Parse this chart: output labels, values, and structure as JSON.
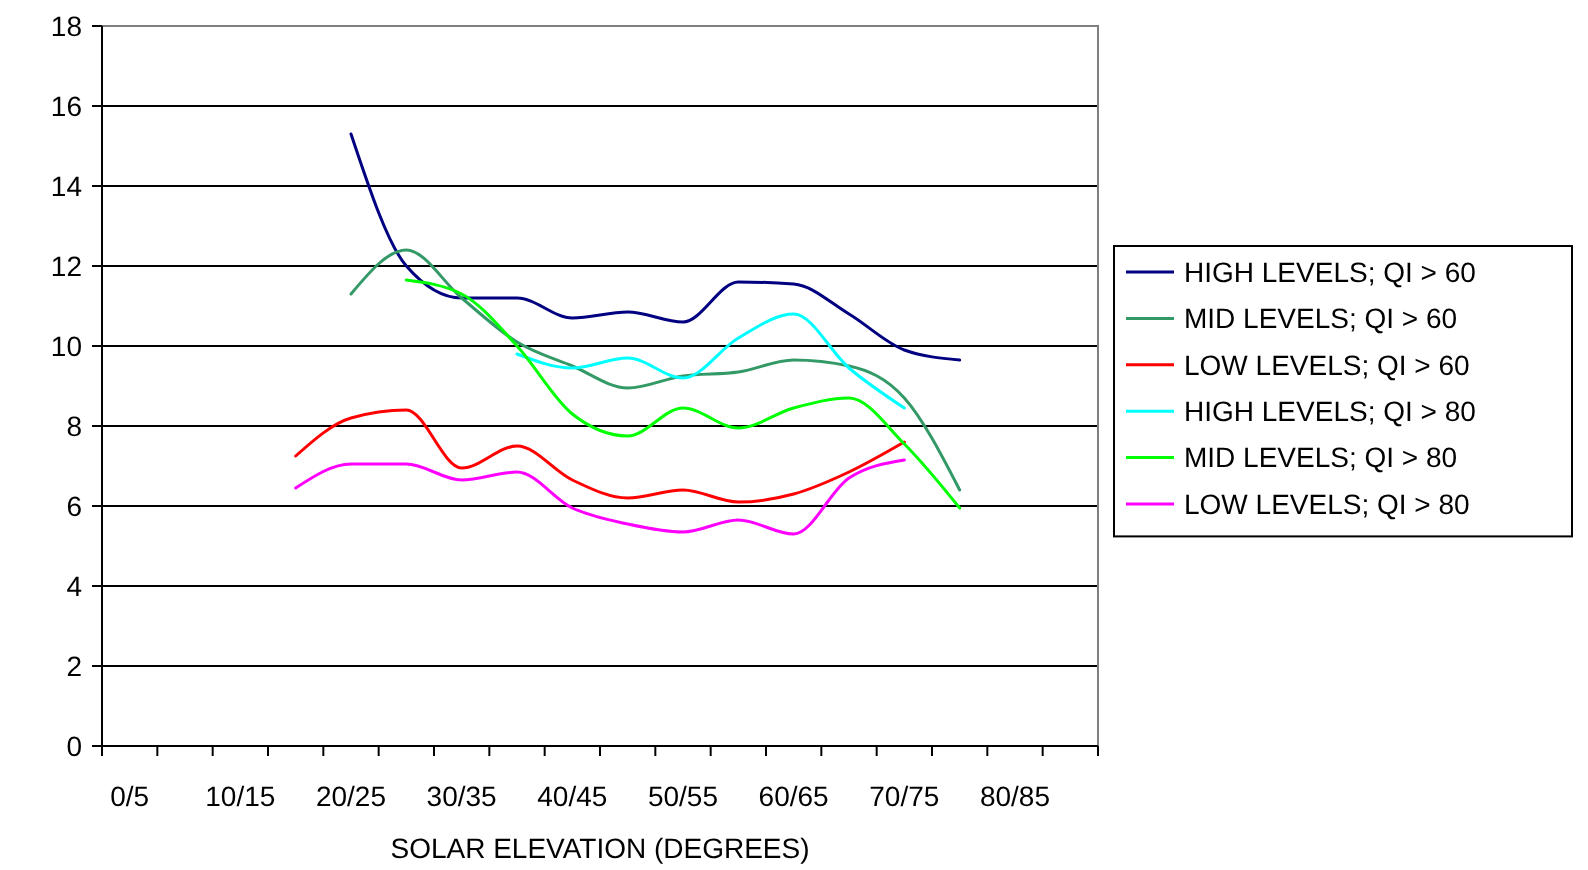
{
  "chart_data": {
    "type": "line",
    "xlabel": "SOLAR ELEVATION (DEGREES)",
    "categories": [
      "0/5",
      null,
      "10/15",
      null,
      "20/25",
      null,
      "30/35",
      null,
      "40/45",
      null,
      "50/55",
      null,
      "60/65",
      null,
      "70/75",
      null,
      "80/85",
      null
    ],
    "series": [
      {
        "name": "HIGH LEVELS; QI > 60",
        "color": "#000080",
        "values": [
          null,
          null,
          null,
          null,
          15.3,
          12.0,
          11.2,
          11.2,
          10.7,
          10.85,
          10.6,
          11.6,
          11.55,
          10.8,
          9.9,
          9.65,
          null,
          null
        ]
      },
      {
        "name": "MID LEVELS; QI > 60",
        "color": "#339966",
        "values": [
          null,
          null,
          null,
          null,
          11.3,
          12.4,
          11.2,
          10.1,
          9.5,
          8.95,
          9.25,
          9.35,
          9.65,
          9.5,
          8.7,
          6.4,
          null,
          null
        ]
      },
      {
        "name": "LOW LEVELS; QI > 60",
        "color": "#ff0000",
        "values": [
          null,
          null,
          null,
          7.25,
          8.2,
          8.4,
          6.95,
          7.5,
          6.65,
          6.2,
          6.4,
          6.1,
          6.3,
          6.85,
          7.6,
          null,
          null,
          null
        ]
      },
      {
        "name": "HIGH LEVELS; QI > 80",
        "color": "#00ffff",
        "values": [
          null,
          null,
          null,
          null,
          null,
          null,
          null,
          9.8,
          9.45,
          9.7,
          9.2,
          10.2,
          10.8,
          9.45,
          8.45,
          null,
          null,
          null
        ]
      },
      {
        "name": "MID LEVELS; QI > 80",
        "color": "#00ff00",
        "values": [
          null,
          null,
          null,
          null,
          null,
          11.65,
          11.3,
          10.0,
          8.3,
          7.75,
          8.45,
          7.95,
          8.45,
          8.7,
          7.55,
          5.95,
          null,
          null
        ]
      },
      {
        "name": "LOW LEVELS; QI > 80",
        "color": "#ff00ff",
        "values": [
          null,
          null,
          null,
          6.45,
          7.05,
          7.05,
          6.65,
          6.85,
          5.95,
          5.55,
          5.35,
          5.65,
          5.3,
          6.7,
          7.15,
          null,
          null,
          null
        ]
      }
    ],
    "ylim": [
      0,
      18
    ],
    "yticks": [
      0,
      2,
      4,
      6,
      8,
      10,
      12,
      14,
      16,
      18
    ],
    "grid": "y",
    "legend": "right",
    "marker": "none",
    "line_style": "solid"
  }
}
